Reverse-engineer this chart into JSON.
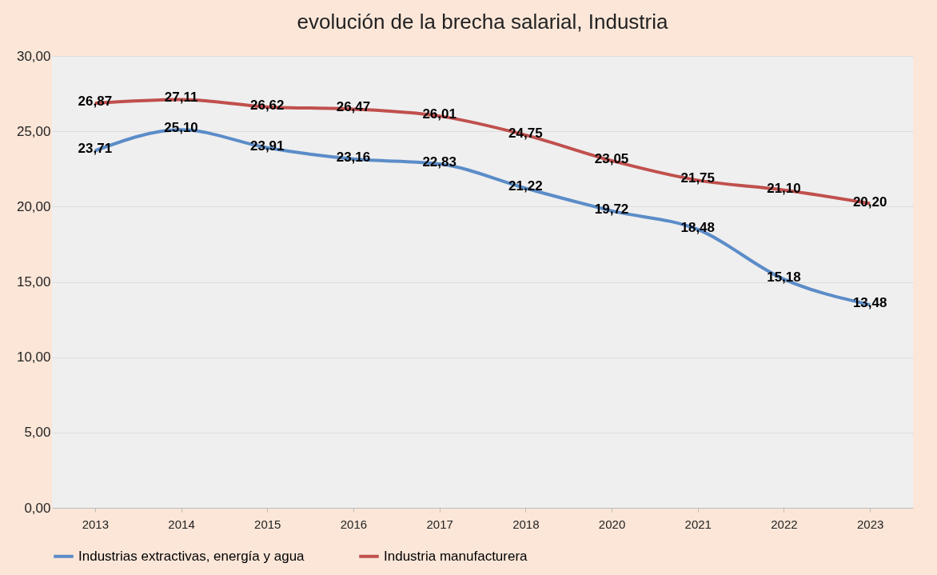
{
  "chart_data": {
    "type": "line",
    "title": "evolución de la brecha salarial, Industria",
    "categories": [
      "2013",
      "2014",
      "2015",
      "2016",
      "2017",
      "2018",
      "2020",
      "2021",
      "2022",
      "2023"
    ],
    "series": [
      {
        "name": "Industrias extractivas, energía y agua",
        "color": "#5b8cc8",
        "values": [
          23.71,
          25.1,
          23.91,
          23.16,
          22.83,
          21.22,
          19.72,
          18.48,
          15.18,
          13.48
        ],
        "value_labels": [
          "23,71",
          "25,10",
          "23,91",
          "23,16",
          "22,83",
          "21,22",
          "19,72",
          "18,48",
          "15,18",
          "13,48"
        ]
      },
      {
        "name": "Industria manufacturera",
        "color": "#c0504d",
        "values": [
          26.87,
          27.11,
          26.62,
          26.47,
          26.01,
          24.75,
          23.05,
          21.75,
          21.1,
          20.2
        ],
        "value_labels": [
          "26,87",
          "27,11",
          "26,62",
          "26,47",
          "26,01",
          "24,75",
          "23,05",
          "21,75",
          "21,10",
          "20,20"
        ]
      }
    ],
    "ylim": [
      0,
      30
    ],
    "yticks": [
      {
        "value": 0,
        "label": "0,00"
      },
      {
        "value": 5,
        "label": "5,00"
      },
      {
        "value": 10,
        "label": "10,00"
      },
      {
        "value": 15,
        "label": "15,00"
      },
      {
        "value": 20,
        "label": "20,00"
      },
      {
        "value": 25,
        "label": "25,00"
      },
      {
        "value": 30,
        "label": "30,00"
      }
    ],
    "grid": "y",
    "legend": "bottom",
    "marker": "none",
    "line_style": "solid"
  }
}
